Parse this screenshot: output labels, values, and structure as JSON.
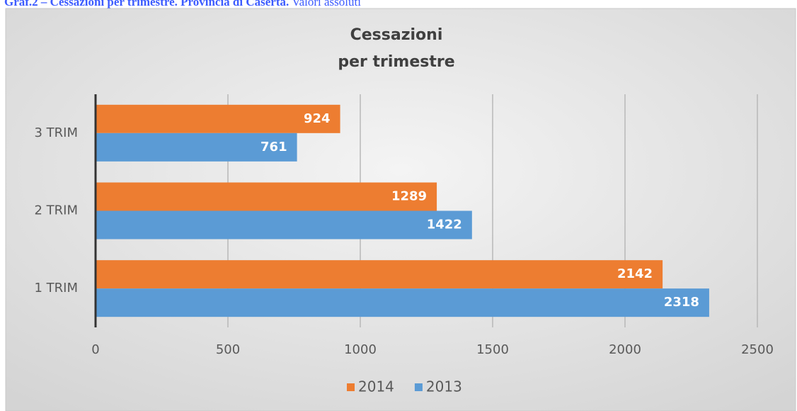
{
  "caption": {
    "bold": "Graf.2 – Cessazioni per trimestre. Provincia di Caserta.",
    "normal": "Valori assoluti"
  },
  "chart_data": {
    "type": "hbar",
    "title": [
      "Cessazioni",
      "per trimestre"
    ],
    "categories": [
      "1 TRIM",
      "2 TRIM",
      "3 TRIM"
    ],
    "series": [
      {
        "name": "2014",
        "color": "#ed7d31",
        "values": [
          2142,
          1289,
          924
        ]
      },
      {
        "name": "2013",
        "color": "#5b9bd5",
        "values": [
          2318,
          1422,
          761
        ]
      }
    ],
    "xlim": [
      0,
      2500
    ],
    "xticks": [
      0,
      500,
      1000,
      1500,
      2000,
      2500
    ],
    "grid": true,
    "legend": "bottom"
  }
}
